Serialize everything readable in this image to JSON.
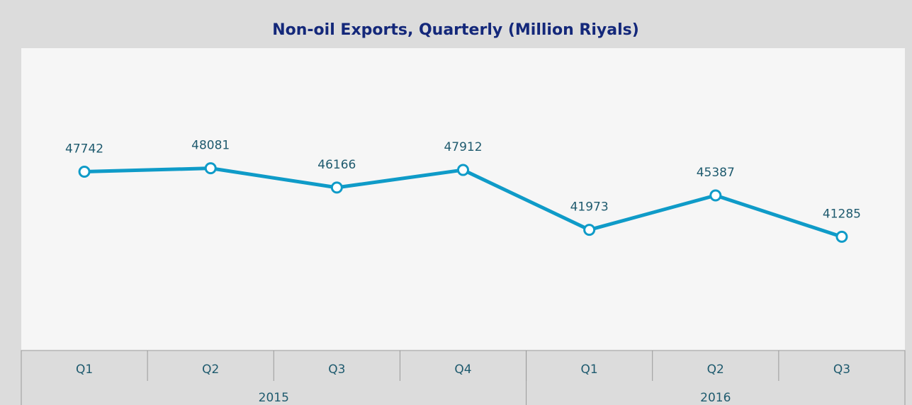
{
  "chart_data": {
    "type": "line",
    "title": "Non-oil Exports, Quarterly (Million Riyals)",
    "categories": [
      "Q1",
      "Q2",
      "Q3",
      "Q4",
      "Q1",
      "Q2",
      "Q3"
    ],
    "groups": [
      {
        "label": "2015",
        "count": 4
      },
      {
        "label": "2016",
        "count": 3
      }
    ],
    "series": [
      {
        "name": "Non-oil Exports",
        "color": "#0f9bc8",
        "values": [
          47742,
          48081,
          46166,
          47912,
          41973,
          45387,
          41285
        ]
      }
    ],
    "ylim": [
      30000,
      60000
    ],
    "grid": false
  }
}
